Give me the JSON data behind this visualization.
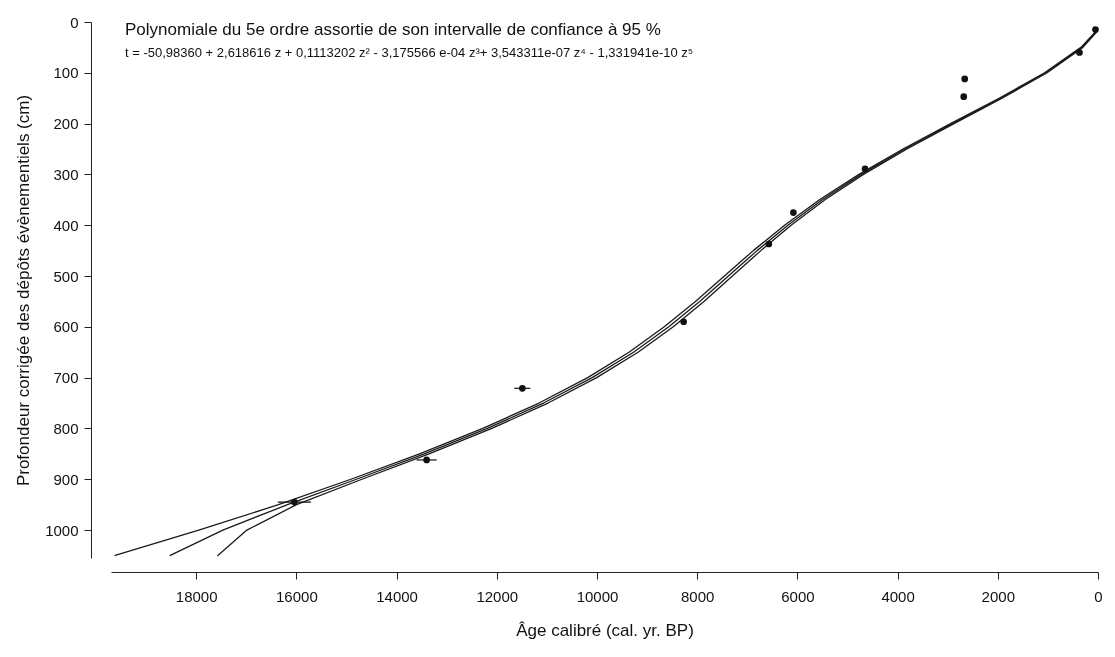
{
  "chart_data": {
    "type": "scatter",
    "xlabel": "Âge calibré (cal. yr. BP)",
    "ylabel": "Profondeur corrigée des dépôts évènementiels (cm)",
    "annotations": [
      "Polynomiale du 5e ordre assortie de son intervalle de confiance à 95 %",
      "t = -50,98360 + 2,618616 z + 0,1113202 z² - 3,175566 e-04 z³+ 3,543311e-07 z⁴ - 1,331941e-10  z⁵"
    ],
    "xlim": [
      19700,
      0
    ],
    "xticks": [
      18000,
      16000,
      14000,
      12000,
      10000,
      8000,
      6000,
      4000,
      2000,
      0
    ],
    "ylim": [
      1055,
      0
    ],
    "yticks": [
      0,
      100,
      200,
      300,
      400,
      500,
      600,
      700,
      800,
      900,
      1000
    ],
    "grid": false,
    "series": [
      {
        "type": "line",
        "color": "#1a1a1a",
        "x": [
          43,
          321,
          1041,
          1944,
          2909,
          3853,
          4726,
          5505,
          6191,
          6805,
          7377,
          7950,
          8567,
          9271,
          10096,
          11066,
          12189,
          13447,
          14802,
          16177,
          17468,
          18517
        ],
        "values": [
          20,
          50,
          100,
          150,
          200,
          250,
          300,
          350,
          400,
          450,
          500,
          550,
          600,
          650,
          700,
          750,
          800,
          850,
          900,
          950,
          1000,
          1050
        ]
      },
      {
        "type": "line",
        "color": "#1a1a1a",
        "x": [
          58,
          341,
          1066,
          1974,
          2944,
          3893,
          4771,
          5560,
          6256,
          6880,
          7457,
          8035,
          8657,
          9361,
          10186,
          11156,
          12279,
          13542,
          14912,
          16357,
          17948,
          19617
        ],
        "values": [
          20,
          50,
          100,
          150,
          200,
          250,
          300,
          350,
          400,
          450,
          500,
          550,
          600,
          650,
          700,
          750,
          800,
          850,
          900,
          950,
          1000,
          1050
        ]
      },
      {
        "type": "line",
        "color": "#1a1a1a",
        "x": [
          28,
          301,
          1016,
          1914,
          2874,
          3813,
          4681,
          5450,
          6126,
          6730,
          7297,
          7865,
          8477,
          9181,
          10006,
          10976,
          12099,
          13352,
          14692,
          15997,
          16988,
          17567
        ],
        "values": [
          20,
          50,
          100,
          150,
          200,
          250,
          300,
          350,
          400,
          450,
          500,
          550,
          600,
          650,
          700,
          750,
          800,
          850,
          900,
          950,
          1000,
          1050
        ]
      },
      {
        "color": "#111111",
        "marker": "circle",
        "x": [
          50,
          370,
          2660,
          2680,
          4650,
          6080,
          6570,
          8270,
          11490,
          13400,
          16040
        ],
        "values": [
          15,
          60,
          112,
          147,
          289,
          375,
          437,
          590,
          721,
          862,
          945
        ],
        "xerrors": [
          null,
          null,
          null,
          null,
          null,
          null,
          null,
          null,
          160,
          200,
          330
        ]
      }
    ]
  }
}
